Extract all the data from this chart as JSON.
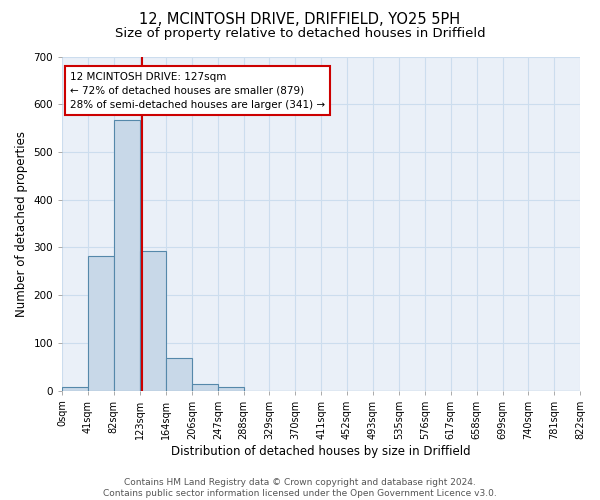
{
  "title": "12, MCINTOSH DRIVE, DRIFFIELD, YO25 5PH",
  "subtitle": "Size of property relative to detached houses in Driffield",
  "xlabel": "Distribution of detached houses by size in Driffield",
  "ylabel": "Number of detached properties",
  "bin_edges": [
    0,
    41,
    82,
    123,
    164,
    206,
    247,
    288,
    329,
    370,
    411,
    452,
    493,
    535,
    576,
    617,
    658,
    699,
    740,
    781,
    822
  ],
  "bin_counts": [
    7,
    281,
    566,
    292,
    68,
    14,
    8,
    0,
    0,
    0,
    0,
    0,
    0,
    0,
    0,
    0,
    0,
    0,
    0,
    0
  ],
  "bar_color": "#c8d8e8",
  "bar_edge_color": "#5588aa",
  "bar_linewidth": 0.8,
  "vline_x": 127,
  "vline_color": "#cc0000",
  "vline_linewidth": 1.5,
  "annotation_text": "12 MCINTOSH DRIVE: 127sqm\n← 72% of detached houses are smaller (879)\n28% of semi-detached houses are larger (341) →",
  "annotation_box_color": "white",
  "annotation_box_edgecolor": "#cc0000",
  "ylim": [
    0,
    700
  ],
  "yticks": [
    0,
    100,
    200,
    300,
    400,
    500,
    600,
    700
  ],
  "tick_labels": [
    "0sqm",
    "41sqm",
    "82sqm",
    "123sqm",
    "164sqm",
    "206sqm",
    "247sqm",
    "288sqm",
    "329sqm",
    "370sqm",
    "411sqm",
    "452sqm",
    "493sqm",
    "535sqm",
    "576sqm",
    "617sqm",
    "658sqm",
    "699sqm",
    "740sqm",
    "781sqm",
    "822sqm"
  ],
  "grid_color": "#ccddee",
  "background_color": "#eaf0f8",
  "footer_text": "Contains HM Land Registry data © Crown copyright and database right 2024.\nContains public sector information licensed under the Open Government Licence v3.0.",
  "title_fontsize": 10.5,
  "subtitle_fontsize": 9.5,
  "xlabel_fontsize": 8.5,
  "ylabel_fontsize": 8.5,
  "tick_fontsize": 7,
  "annotation_fontsize": 7.5,
  "footer_fontsize": 6.5
}
